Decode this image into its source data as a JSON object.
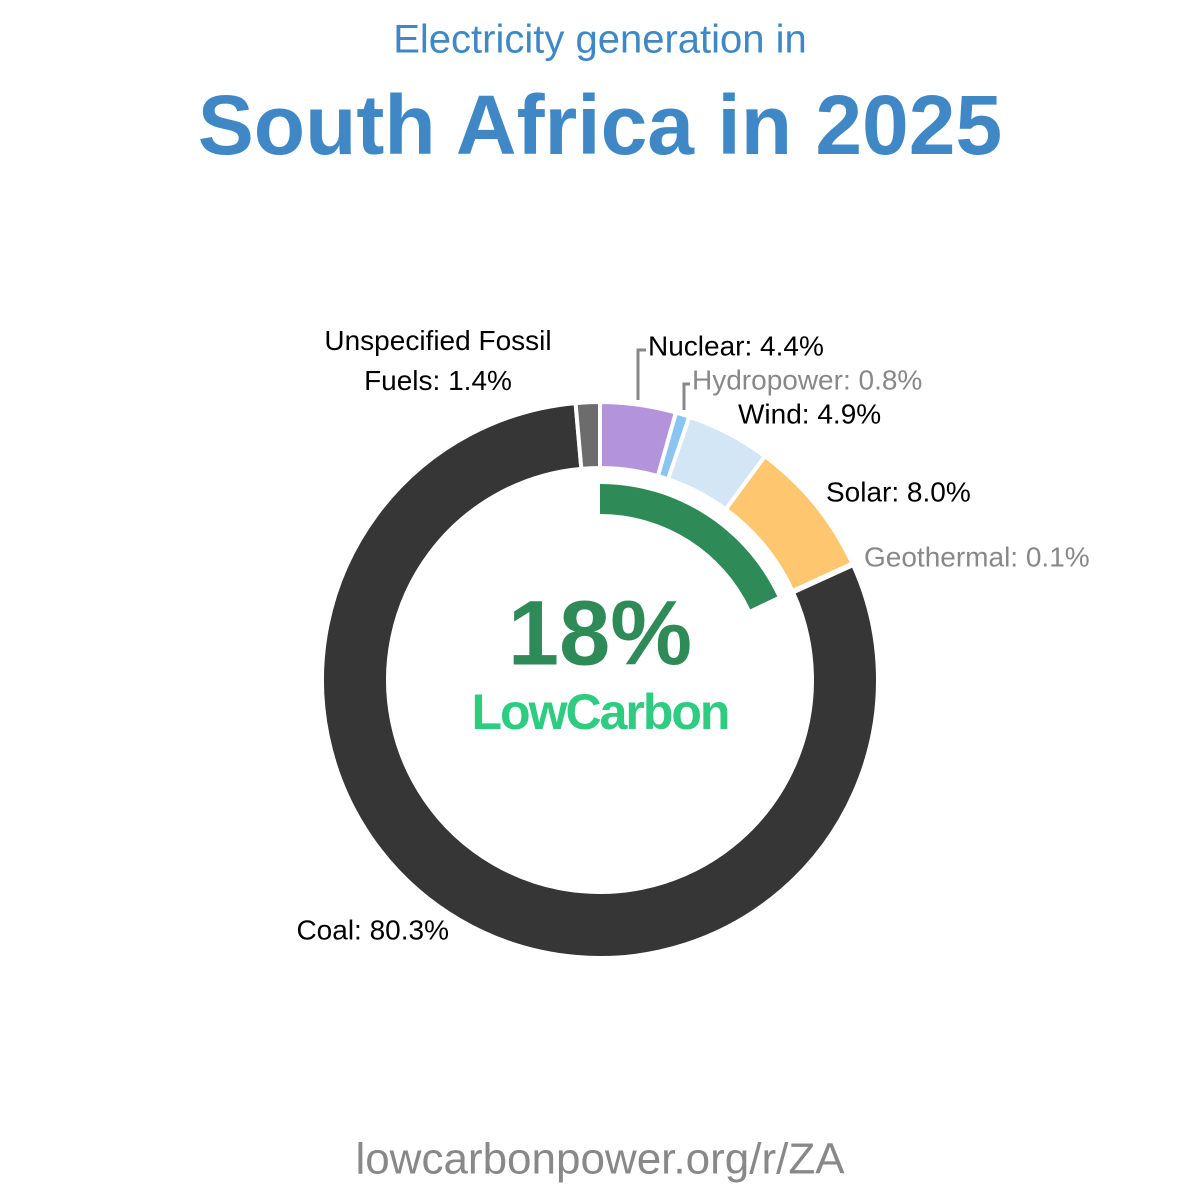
{
  "chart_data": {
    "type": "donut",
    "title": "Electricity generation in",
    "subtitle": "South Africa in 2025",
    "values": [
      4.4,
      0.8,
      4.9,
      8.0,
      0.1,
      80.3,
      1.4
    ],
    "value_labels": [
      "Nuclear: 4.4%",
      "Hydropower: 0.8%",
      "Wind: 4.9%",
      "Solar: 8.0%",
      "Geothermal: 0.1%",
      "Coal: 80.3%",
      "Unspecified Fossil Fuels: 1.4%"
    ],
    "colors": [
      "#b394dc",
      "#8ac4f0",
      "#d2e6f6",
      "#fec66f",
      "#d9534f",
      "#363636",
      "#6c6c6c"
    ],
    "label_colors": [
      "#000000",
      "#888888",
      "#000000",
      "#000000",
      "#888888",
      "#000000",
      "#000000"
    ],
    "low_carbon": {
      "value": 18,
      "label": "18%",
      "name": "LowCarbon",
      "color": "#2e8b57",
      "name_color": "#2ecc80"
    },
    "source": "lowcarbonpower.org/r/ZA"
  }
}
